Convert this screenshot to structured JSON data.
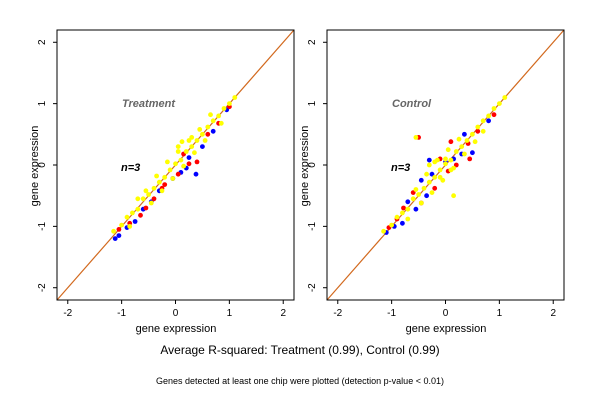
{
  "caption": "Average R-squared: Treatment (0.99), Control (0.99)",
  "footnote": "Genes detected at least one chip were plotted (detection p-value < 0.01)",
  "colors": {
    "diagonal": "#d2691e",
    "frame": "#000000",
    "points": [
      "#0000ff",
      "#ff0000",
      "#ffff00"
    ]
  },
  "chart_data": [
    {
      "type": "scatter",
      "title": "Treatment",
      "annotation": "n=3",
      "xlabel": "gene expression",
      "ylabel": "gene expression",
      "xlim": [
        -2.2,
        2.2
      ],
      "ylim": [
        -2.2,
        2.2
      ],
      "xticks": [
        "-2",
        "-1",
        "0",
        "1",
        "2"
      ],
      "yticks": [
        "-2",
        "-1",
        "0",
        "1",
        "2"
      ],
      "diagonal": true,
      "grid": false,
      "series": [
        {
          "color": "#0000ff",
          "points": [
            [
              -1.12,
              -1.2
            ],
            [
              -1.05,
              -1.15
            ],
            [
              -0.9,
              -1.02
            ],
            [
              -0.6,
              -0.72
            ],
            [
              -0.45,
              -0.6
            ],
            [
              -0.3,
              -0.42
            ],
            [
              -0.05,
              -0.22
            ],
            [
              0.2,
              -0.05
            ],
            [
              0.25,
              0.12
            ],
            [
              0.38,
              -0.15
            ],
            [
              0.5,
              0.3
            ],
            [
              0.7,
              0.55
            ],
            [
              0.95,
              0.9
            ],
            [
              -0.75,
              -0.92
            ],
            [
              0.1,
              -0.12
            ]
          ]
        },
        {
          "color": "#ff0000",
          "points": [
            [
              -1.05,
              -1.05
            ],
            [
              -0.85,
              -0.95
            ],
            [
              -0.55,
              -0.7
            ],
            [
              -0.4,
              -0.55
            ],
            [
              -0.2,
              -0.32
            ],
            [
              -0.25,
              -0.38
            ],
            [
              0.05,
              -0.15
            ],
            [
              0.25,
              0.02
            ],
            [
              0.4,
              0.05
            ],
            [
              0.6,
              0.5
            ],
            [
              0.8,
              0.68
            ],
            [
              1.0,
              0.95
            ],
            [
              -0.65,
              -0.82
            ],
            [
              0.15,
              0.18
            ]
          ]
        },
        {
          "color": "#ffff00",
          "points": [
            [
              -1.15,
              -1.08
            ],
            [
              -1.0,
              -0.98
            ],
            [
              -0.9,
              -0.85
            ],
            [
              -0.8,
              -0.78
            ],
            [
              -0.7,
              -0.72
            ],
            [
              -0.6,
              -0.55
            ],
            [
              -0.5,
              -0.48
            ],
            [
              -0.4,
              -0.38
            ],
            [
              -0.3,
              -0.28
            ],
            [
              -0.2,
              -0.2
            ],
            [
              -0.1,
              -0.08
            ],
            [
              0.0,
              0.02
            ],
            [
              0.1,
              0.08
            ],
            [
              0.2,
              0.22
            ],
            [
              0.3,
              0.3
            ],
            [
              0.4,
              0.4
            ],
            [
              0.5,
              0.5
            ],
            [
              0.6,
              0.62
            ],
            [
              0.7,
              0.72
            ],
            [
              0.8,
              0.8
            ],
            [
              0.9,
              0.92
            ],
            [
              1.0,
              1.0
            ],
            [
              1.1,
              1.1
            ],
            [
              -0.55,
              -0.42
            ],
            [
              -0.35,
              -0.18
            ],
            [
              -0.15,
              0.05
            ],
            [
              0.05,
              0.22
            ],
            [
              0.25,
              0.4
            ],
            [
              0.45,
              0.58
            ],
            [
              -0.45,
              -0.62
            ],
            [
              -0.25,
              -0.42
            ],
            [
              -0.05,
              -0.22
            ],
            [
              0.15,
              -0.02
            ],
            [
              0.35,
              0.2
            ],
            [
              0.55,
              0.4
            ],
            [
              0.12,
              0.38
            ],
            [
              0.3,
              0.45
            ],
            [
              0.05,
              0.3
            ],
            [
              -0.7,
              -0.55
            ],
            [
              -0.85,
              -1.0
            ],
            [
              0.65,
              0.82
            ],
            [
              0.85,
              0.68
            ]
          ]
        }
      ]
    },
    {
      "type": "scatter",
      "title": "Control",
      "annotation": "n=3",
      "xlabel": "gene expression",
      "ylabel": "gene expression",
      "xlim": [
        -2.2,
        2.2
      ],
      "ylim": [
        -2.2,
        2.2
      ],
      "xticks": [
        "-2",
        "-1",
        "0",
        "1",
        "2"
      ],
      "yticks": [
        "-2",
        "-1",
        "0",
        "1",
        "2"
      ],
      "diagonal": true,
      "grid": false,
      "series": [
        {
          "color": "#0000ff",
          "points": [
            [
              -1.1,
              -1.1
            ],
            [
              -0.95,
              -1.0
            ],
            [
              -0.8,
              -0.95
            ],
            [
              -0.7,
              -0.6
            ],
            [
              -0.55,
              -0.72
            ],
            [
              -0.35,
              -0.5
            ],
            [
              -0.3,
              0.08
            ],
            [
              -0.25,
              -0.15
            ],
            [
              0.0,
              0.05
            ],
            [
              0.15,
              0.1
            ],
            [
              0.3,
              0.18
            ],
            [
              0.5,
              0.2
            ],
            [
              0.8,
              0.72
            ],
            [
              -0.45,
              -0.25
            ],
            [
              0.35,
              0.5
            ]
          ]
        },
        {
          "color": "#ff0000",
          "points": [
            [
              -1.05,
              -1.02
            ],
            [
              -0.9,
              -0.88
            ],
            [
              -0.78,
              -0.7
            ],
            [
              -0.6,
              -0.45
            ],
            [
              -0.45,
              -0.62
            ],
            [
              -0.2,
              -0.38
            ],
            [
              -0.1,
              0.1
            ],
            [
              0.05,
              -0.1
            ],
            [
              0.2,
              0.0
            ],
            [
              0.42,
              0.35
            ],
            [
              0.45,
              0.1
            ],
            [
              0.6,
              0.55
            ],
            [
              0.9,
              0.82
            ],
            [
              -0.5,
              0.45
            ],
            [
              0.1,
              0.38
            ]
          ]
        },
        {
          "color": "#ffff00",
          "points": [
            [
              -1.15,
              -1.08
            ],
            [
              -1.0,
              -0.98
            ],
            [
              -0.9,
              -0.85
            ],
            [
              -0.8,
              -0.78
            ],
            [
              -0.7,
              -0.72
            ],
            [
              -0.6,
              -0.55
            ],
            [
              -0.5,
              -0.48
            ],
            [
              -0.4,
              -0.38
            ],
            [
              -0.3,
              -0.28
            ],
            [
              -0.2,
              -0.2
            ],
            [
              -0.1,
              -0.08
            ],
            [
              0.0,
              0.02
            ],
            [
              0.1,
              0.08
            ],
            [
              0.2,
              0.22
            ],
            [
              0.3,
              0.3
            ],
            [
              0.4,
              0.4
            ],
            [
              0.5,
              0.5
            ],
            [
              0.6,
              0.62
            ],
            [
              0.7,
              0.72
            ],
            [
              0.8,
              0.8
            ],
            [
              0.9,
              0.92
            ],
            [
              1.0,
              1.0
            ],
            [
              1.1,
              1.1
            ],
            [
              -0.55,
              -0.4
            ],
            [
              -0.35,
              -0.15
            ],
            [
              -0.15,
              0.08
            ],
            [
              0.05,
              0.25
            ],
            [
              0.25,
              0.42
            ],
            [
              -0.45,
              -0.62
            ],
            [
              -0.25,
              -0.45
            ],
            [
              -0.05,
              -0.25
            ],
            [
              0.15,
              -0.05
            ],
            [
              0.35,
              0.18
            ],
            [
              0.55,
              0.38
            ],
            [
              -0.3,
              0.0
            ],
            [
              -0.1,
              -0.2
            ],
            [
              -0.2,
              0.05
            ],
            [
              0.0,
              0.1
            ],
            [
              0.1,
              -0.08
            ],
            [
              0.15,
              -0.5
            ],
            [
              -0.55,
              0.45
            ],
            [
              -0.7,
              -0.88
            ],
            [
              0.7,
              0.55
            ]
          ]
        }
      ]
    }
  ]
}
